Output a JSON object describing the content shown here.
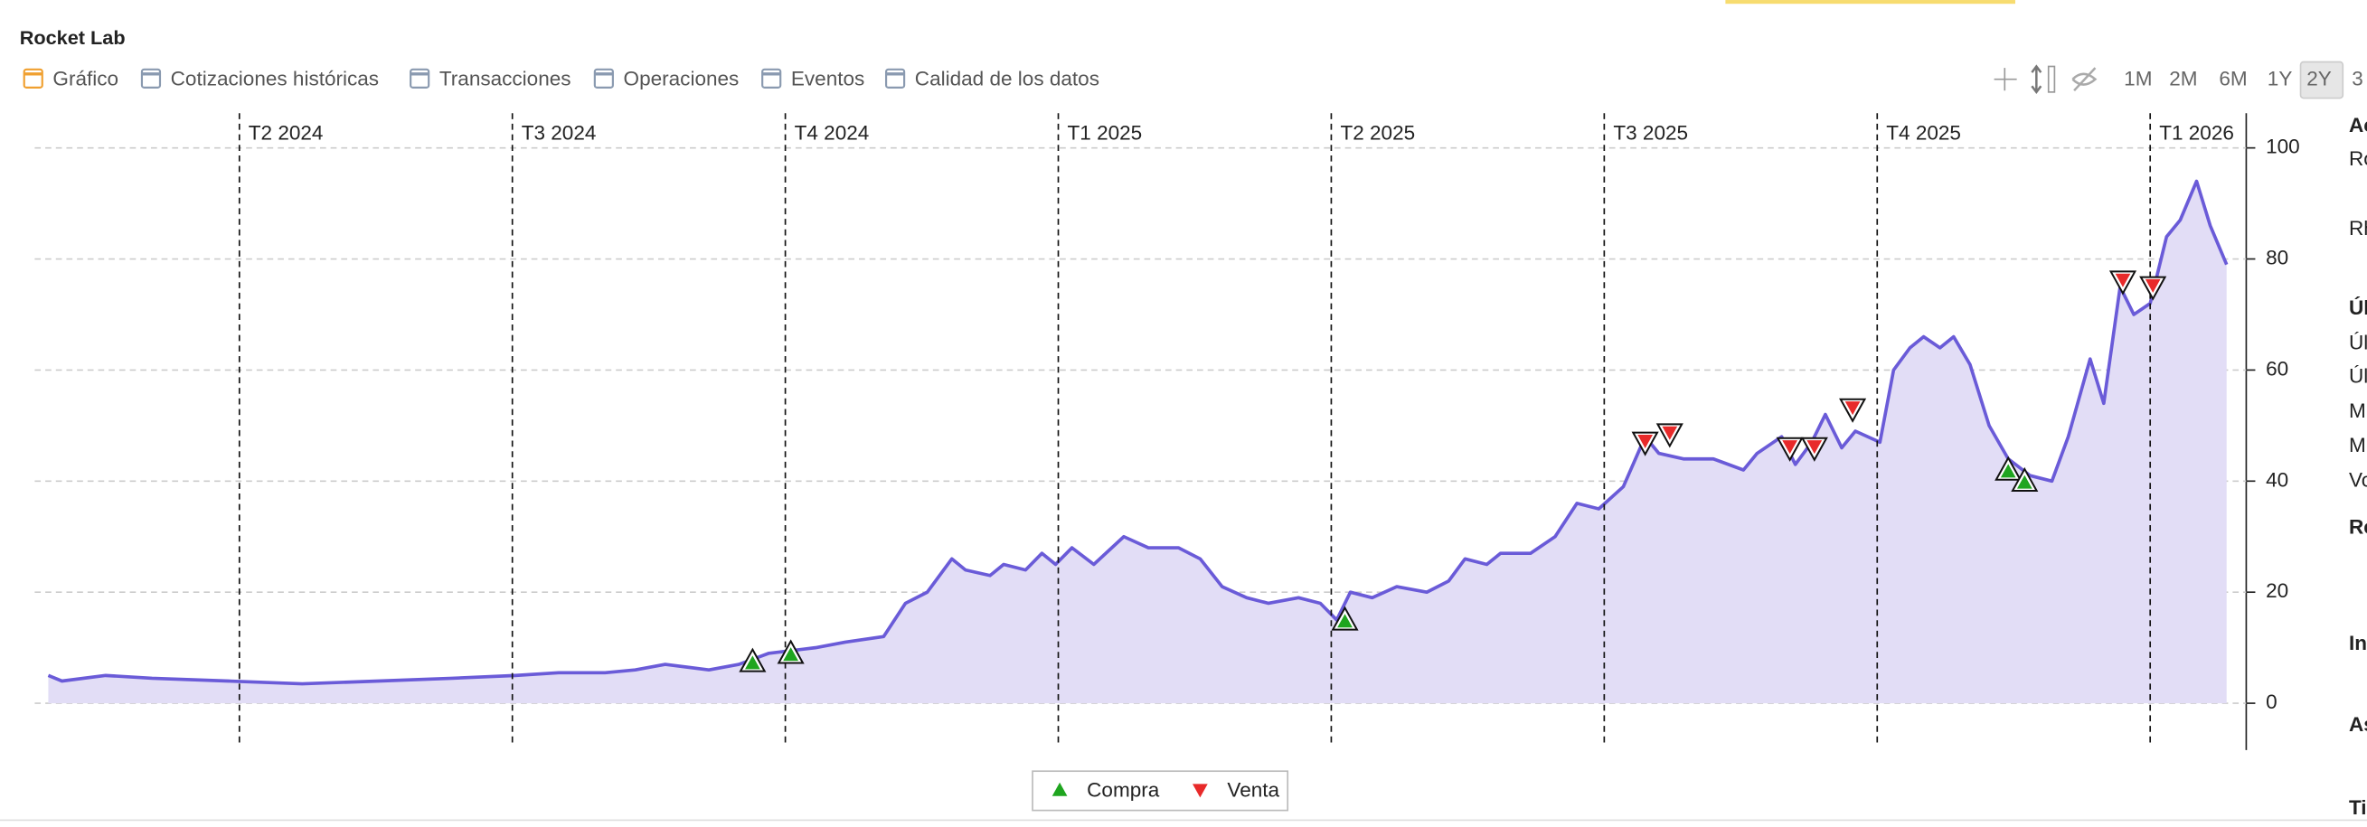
{
  "chart_data": {
    "type": "area",
    "title": "Rocket Lab",
    "tabs": [
      "Gráfico",
      "Cotizaciones históricas",
      "Transacciones",
      "Operaciones",
      "Eventos",
      "Calidad de los datos"
    ],
    "active_tab": "Gráfico",
    "range_buttons": [
      "1M",
      "2M",
      "6M",
      "1Y",
      "2Y",
      "3"
    ],
    "active_range": "2Y",
    "sidebar": [
      "Ac",
      "Ro",
      "Rh",
      "Úl",
      "Úl",
      "Úl",
      "M",
      "M",
      "Vo",
      "Re",
      "In",
      "As",
      "Ti"
    ],
    "xlim": [
      0.3,
      8.28
    ],
    "xticks": [
      {
        "value": 1,
        "label": "T2 2024"
      },
      {
        "value": 2,
        "label": "T3 2024"
      },
      {
        "value": 3,
        "label": "T4 2024"
      },
      {
        "value": 4,
        "label": "T1 2025"
      },
      {
        "value": 5,
        "label": "T2 2025"
      },
      {
        "value": 6,
        "label": "T3 2025"
      },
      {
        "value": 7,
        "label": "T4 2025"
      },
      {
        "value": 8,
        "label": "T1 2026"
      }
    ],
    "ylim": [
      0,
      100
    ],
    "yticks": [
      0,
      20,
      40,
      60,
      80,
      100
    ],
    "grid": true,
    "line_color": "#6a5bd8",
    "fill_color": "#e2ddf6",
    "x": [
      0.3,
      0.35,
      0.51,
      0.68,
      0.96,
      1.23,
      1.51,
      1.78,
      2.01,
      2.17,
      2.34,
      2.45,
      2.56,
      2.72,
      2.83,
      2.94,
      3.11,
      3.22,
      3.36,
      3.44,
      3.52,
      3.61,
      3.66,
      3.75,
      3.8,
      3.88,
      3.94,
      3.99,
      4.05,
      4.13,
      4.24,
      4.33,
      4.44,
      4.52,
      4.6,
      4.69,
      4.77,
      4.88,
      4.96,
      5.02,
      5.07,
      5.15,
      5.24,
      5.35,
      5.43,
      5.49,
      5.57,
      5.62,
      5.73,
      5.82,
      5.9,
      5.98,
      6.07,
      6.15,
      6.2,
      6.29,
      6.4,
      6.51,
      6.56,
      6.65,
      6.7,
      6.76,
      6.81,
      6.87,
      6.92,
      7.01,
      7.06,
      7.12,
      7.17,
      7.23,
      7.28,
      7.34,
      7.41,
      7.48,
      7.56,
      7.64,
      7.7,
      7.78,
      7.83,
      7.89,
      7.94,
      8.0,
      8.06,
      8.11,
      8.17,
      8.22,
      8.28
    ],
    "values": [
      5,
      4,
      5,
      4.5,
      4,
      3.5,
      4,
      4.5,
      5,
      5.5,
      5.5,
      6,
      7,
      6,
      7,
      9,
      10,
      11,
      12,
      18,
      20,
      26,
      24,
      23,
      25,
      24,
      27,
      25,
      28,
      25,
      30,
      28,
      28,
      26,
      21,
      19,
      18,
      19,
      18,
      15,
      20,
      19,
      21,
      20,
      22,
      26,
      25,
      27,
      27,
      30,
      36,
      35,
      39,
      48,
      45,
      44,
      44,
      42,
      45,
      48,
      43,
      47,
      52,
      46,
      49,
      47,
      60,
      64,
      66,
      64,
      66,
      61,
      50,
      44,
      41,
      40,
      48,
      62,
      54,
      75,
      70,
      72,
      84,
      87,
      94,
      86,
      79
    ],
    "markers": [
      {
        "name": "Compra",
        "color": "#1fa51f",
        "shape": "up",
        "x": [
          2.88,
          3.02,
          5.05,
          7.48,
          7.54
        ],
        "values": [
          7.5,
          9,
          15,
          42,
          40
        ]
      },
      {
        "name": "Venta",
        "color": "#e82a2a",
        "shape": "down",
        "x": [
          6.15,
          6.24,
          6.68,
          6.77,
          6.91,
          7.9,
          8.01
        ],
        "values": [
          47,
          48.5,
          46,
          46,
          53,
          76,
          75
        ]
      }
    ]
  }
}
